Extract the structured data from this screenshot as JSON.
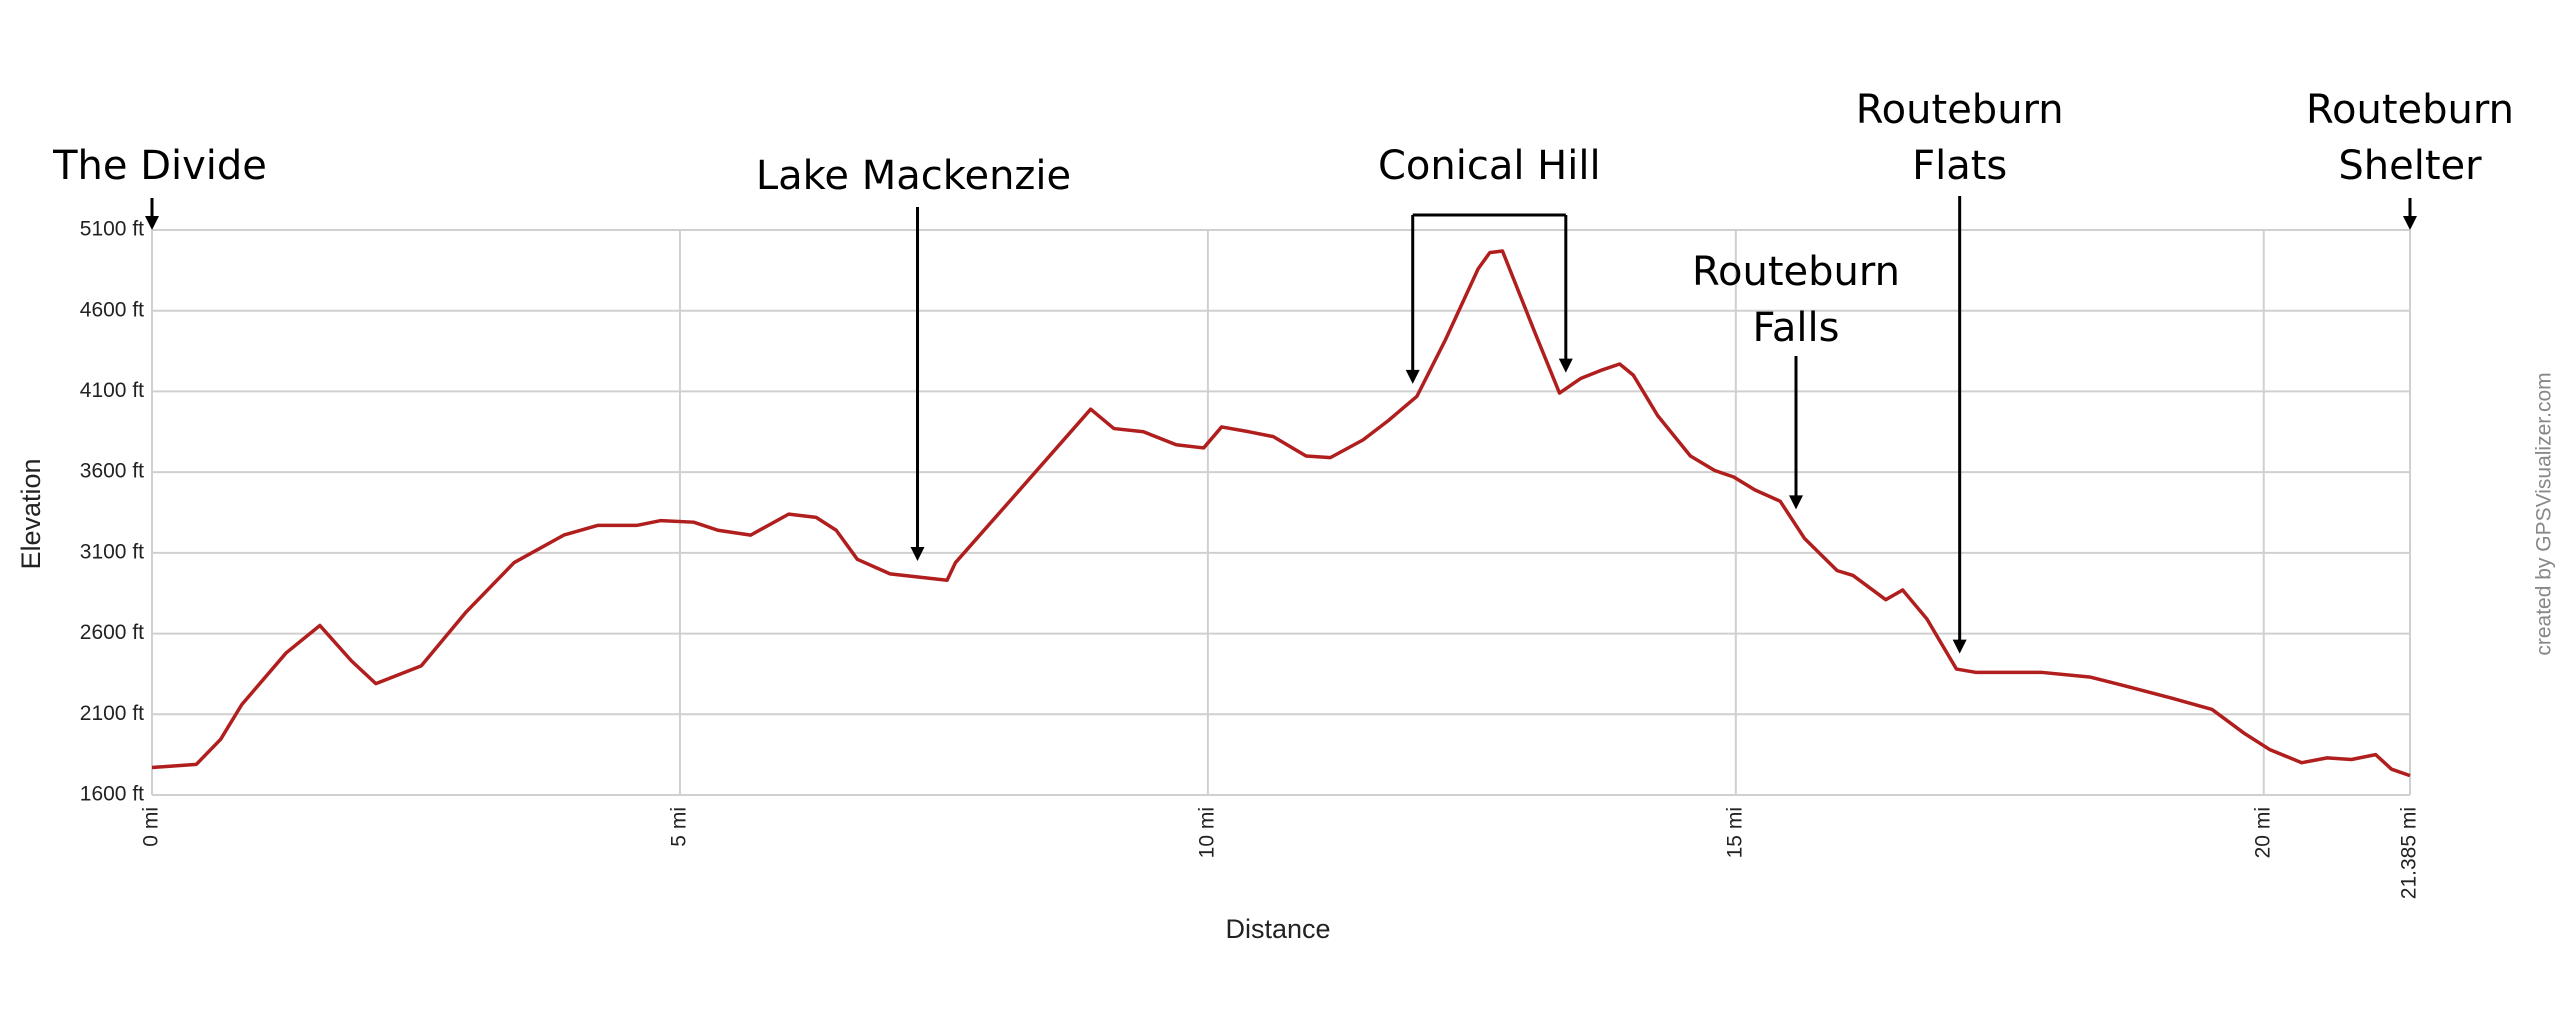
{
  "chart_data": {
    "type": "line",
    "x_label": "Distance",
    "y_label": "Elevation",
    "credit": "created by GPSVisualizer.com",
    "color": "#b01e1e",
    "grid": true,
    "x": [
      0,
      0.42,
      0.65,
      0.85,
      1.27,
      1.59,
      1.89,
      2.12,
      2.55,
      2.97,
      3.43,
      3.9,
      4.22,
      4.59,
      4.82,
      5.13,
      5.36,
      5.67,
      6.03,
      6.29,
      6.48,
      6.68,
      6.99,
      7.53,
      7.61,
      8.15,
      8.89,
      9.11,
      9.39,
      9.7,
      9.96,
      10.13,
      10.39,
      10.62,
      10.93,
      11.16,
      11.47,
      11.71,
      11.98,
      12.25,
      12.56,
      12.67,
      12.79,
      13.1,
      13.33,
      13.53,
      13.72,
      13.9,
      14.03,
      14.26,
      14.57,
      14.8,
      14.98,
      15.18,
      15.42,
      15.65,
      15.96,
      16.11,
      16.42,
      16.58,
      16.81,
      17.09,
      17.27,
      17.89,
      18.36,
      18.66,
      19.13,
      19.51,
      19.82,
      20.06,
      20.36,
      20.6,
      20.83,
      21.06,
      21.21,
      21.385
    ],
    "values": [
      1770,
      1790,
      1945,
      2160,
      2480,
      2650,
      2430,
      2290,
      2400,
      2730,
      3040,
      3210,
      3270,
      3270,
      3300,
      3290,
      3240,
      3210,
      3340,
      3320,
      3240,
      3060,
      2970,
      2930,
      3040,
      3440,
      3990,
      3870,
      3850,
      3770,
      3750,
      3880,
      3850,
      3820,
      3700,
      3690,
      3800,
      3920,
      4070,
      4420,
      4860,
      4960,
      4970,
      4460,
      4090,
      4180,
      4230,
      4270,
      4200,
      3950,
      3700,
      3610,
      3570,
      3490,
      3420,
      3190,
      2990,
      2960,
      2810,
      2870,
      2690,
      2380,
      2360,
      2360,
      2330,
      2280,
      2200,
      2130,
      1980,
      1880,
      1800,
      1830,
      1820,
      1850,
      1760,
      1720
    ],
    "xlim": [
      0,
      21.385
    ],
    "xticks": [
      {
        "value": 0,
        "label": "0 mi"
      },
      {
        "value": 5,
        "label": "5 mi"
      },
      {
        "value": 10,
        "label": "10 mi"
      },
      {
        "value": 15,
        "label": "15 mi"
      },
      {
        "value": 20,
        "label": "20 mi"
      },
      {
        "value": 21.385,
        "label": "21.385 mi"
      }
    ],
    "ylim": [
      1600,
      5100
    ],
    "yticks": [
      {
        "value": 1600,
        "label": "1600 ft"
      },
      {
        "value": 2100,
        "label": "2100 ft"
      },
      {
        "value": 2600,
        "label": "2600 ft"
      },
      {
        "value": 3100,
        "label": "3100 ft"
      },
      {
        "value": 3600,
        "label": "3600 ft"
      },
      {
        "value": 4100,
        "label": "4100 ft"
      },
      {
        "value": 4600,
        "label": "4600 ft"
      },
      {
        "value": 5100,
        "label": "5100 ft"
      }
    ],
    "annotations": [
      {
        "lines": [
          "The Divide"
        ],
        "x": [
          0
        ]
      },
      {
        "lines": [
          "Lake Mackenzie"
        ],
        "x": [
          7.25
        ]
      },
      {
        "lines": [
          "Conical Hill"
        ],
        "x": [
          11.94,
          13.39
        ]
      },
      {
        "lines": [
          "Routeburn",
          "Falls"
        ],
        "x": [
          15.57
        ]
      },
      {
        "lines": [
          "Routeburn",
          "Flats"
        ],
        "x": [
          17.12
        ]
      },
      {
        "lines": [
          "Routeburn",
          "Shelter"
        ],
        "x": [
          21.385
        ]
      }
    ]
  }
}
